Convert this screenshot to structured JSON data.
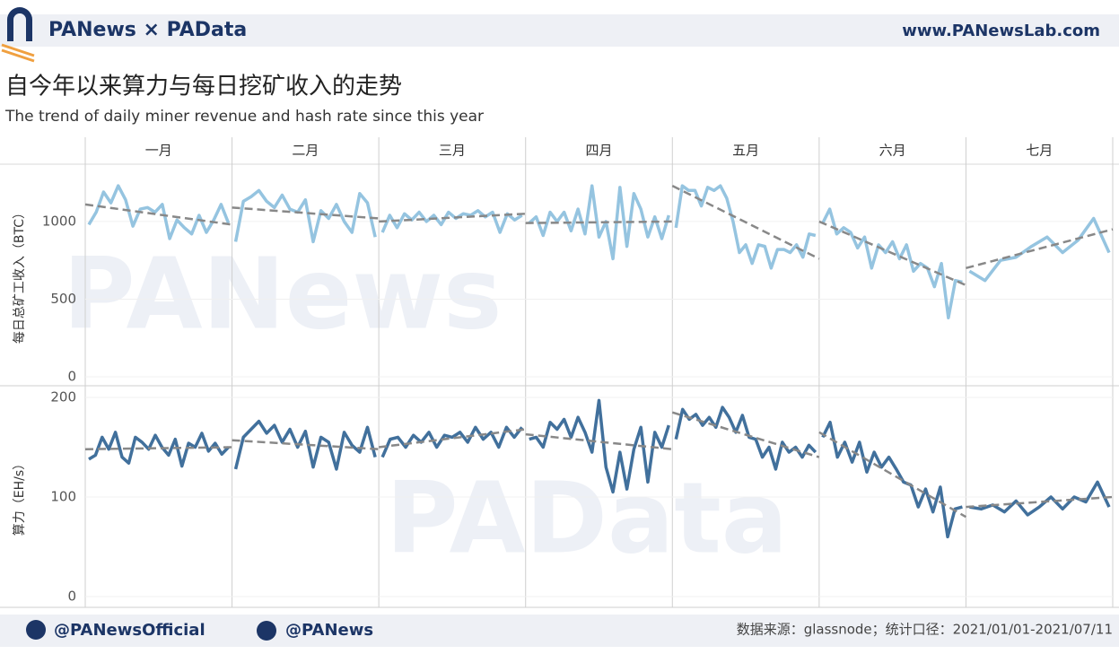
{
  "header": {
    "brand": "PANews × PAData",
    "site": "www.PANewsLab.com"
  },
  "title": "自今年以来算力与每日挖矿收入的走势",
  "subtitle": "The trend of daily miner revenue and hash rate since this year",
  "columns": [
    "一月",
    "二月",
    "三月",
    "四月",
    "五月",
    "六月",
    "七月"
  ],
  "watermarks": [
    "PANews",
    "PAData"
  ],
  "chart_data": [
    {
      "type": "line",
      "y_label": "每日总矿工收入（BTC）",
      "color": "#95c4e0",
      "trend_color": "#888888",
      "ylim": [
        0,
        1300
      ],
      "yticks": [
        0,
        500,
        1000
      ],
      "grid": true,
      "panels": [
        {
          "values": [
            980,
            1060,
            1190,
            1120,
            1230,
            1140,
            970,
            1080,
            1090,
            1060,
            1110,
            890,
            1010,
            960,
            920,
            1040,
            930,
            1010,
            1110,
            990
          ],
          "trend": [
            1110,
            980
          ]
        },
        {
          "values": [
            870,
            1130,
            1160,
            1200,
            1130,
            1090,
            1170,
            1080,
            1060,
            1140,
            870,
            1070,
            1020,
            1110,
            1000,
            930,
            1180,
            1120,
            900
          ],
          "trend": [
            1090,
            1020
          ]
        },
        {
          "values": [
            930,
            1040,
            960,
            1050,
            1010,
            1060,
            1000,
            1040,
            980,
            1060,
            1020,
            1050,
            1040,
            1070,
            1030,
            1060,
            930,
            1050,
            1010,
            1040
          ],
          "trend": [
            1000,
            1050
          ]
        },
        {
          "values": [
            990,
            1030,
            910,
            1060,
            1000,
            1060,
            940,
            1080,
            920,
            1230,
            900,
            1000,
            760,
            1220,
            840,
            1180,
            1080,
            900,
            1030,
            890,
            1040
          ],
          "trend": [
            990,
            1000
          ]
        },
        {
          "values": [
            960,
            1230,
            1200,
            1200,
            1100,
            1220,
            1200,
            1230,
            1150,
            1000,
            800,
            850,
            730,
            850,
            840,
            700,
            820,
            820,
            800,
            850,
            770,
            920,
            910
          ],
          "trend": [
            1230,
            760
          ]
        },
        {
          "values": [
            990,
            1080,
            920,
            960,
            930,
            830,
            900,
            700,
            850,
            800,
            870,
            760,
            850,
            680,
            730,
            700,
            580,
            730,
            380,
            620,
            610
          ],
          "trend": [
            1000,
            590
          ]
        },
        {
          "values": [
            680,
            620,
            750,
            770,
            840,
            900,
            800,
            880,
            1020,
            800
          ],
          "trend": [
            700,
            950
          ]
        }
      ]
    },
    {
      "type": "line",
      "y_label": "算力（EH/s）",
      "color": "#41709c",
      "trend_color": "#888888",
      "ylim": [
        0,
        200
      ],
      "yticks": [
        0,
        100,
        200
      ],
      "grid": true,
      "panels": [
        {
          "values": [
            138,
            142,
            160,
            148,
            165,
            140,
            134,
            160,
            155,
            148,
            162,
            150,
            142,
            158,
            131,
            154,
            150,
            164,
            146,
            154,
            143,
            150
          ],
          "trend": [
            148,
            150
          ]
        },
        {
          "values": [
            128,
            160,
            168,
            176,
            164,
            172,
            155,
            168,
            150,
            166,
            130,
            160,
            155,
            128,
            165,
            152,
            145,
            170,
            140
          ],
          "trend": [
            157,
            148
          ]
        },
        {
          "values": [
            140,
            158,
            160,
            150,
            162,
            155,
            165,
            150,
            162,
            160,
            165,
            155,
            170,
            158,
            165,
            150,
            170,
            160,
            170
          ],
          "trend": [
            150,
            168
          ]
        },
        {
          "values": [
            158,
            160,
            150,
            175,
            168,
            178,
            160,
            180,
            165,
            145,
            197,
            130,
            105,
            145,
            108,
            148,
            170,
            115,
            165,
            150,
            172
          ],
          "trend": [
            163,
            148
          ]
        },
        {
          "values": [
            158,
            188,
            178,
            183,
            172,
            180,
            170,
            190,
            180,
            165,
            182,
            160,
            158,
            140,
            150,
            128,
            155,
            145,
            150,
            140,
            152,
            145
          ],
          "trend": [
            185,
            140
          ]
        },
        {
          "values": [
            160,
            175,
            140,
            155,
            135,
            155,
            125,
            145,
            130,
            140,
            128,
            115,
            112,
            90,
            108,
            85,
            110,
            60,
            88,
            90
          ],
          "trend": [
            165,
            80
          ]
        },
        {
          "values": [
            90,
            88,
            92,
            85,
            96,
            82,
            90,
            100,
            88,
            100,
            95,
            115,
            90
          ],
          "trend": [
            90,
            100
          ]
        }
      ]
    }
  ],
  "footer": {
    "twitter": "@PANewsOfficial",
    "weibo": "@PANews",
    "source": "数据来源：glassnode；统计口径：2021/01/01-2021/07/11"
  }
}
